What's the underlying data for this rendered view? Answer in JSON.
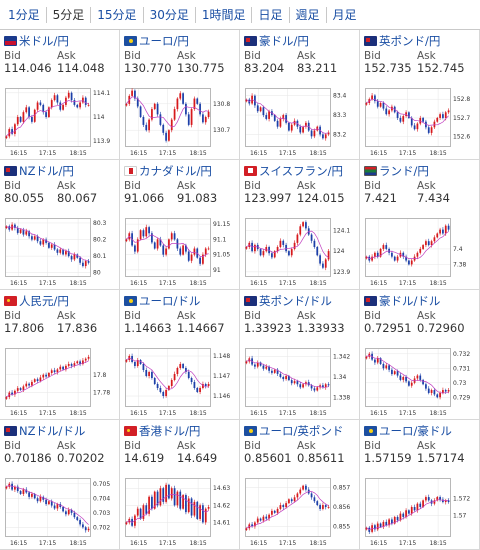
{
  "tabs": [
    {
      "label": "1分足",
      "active": false
    },
    {
      "label": "5分足",
      "active": true
    },
    {
      "label": "15分足",
      "active": false
    },
    {
      "label": "30分足",
      "active": false
    },
    {
      "label": "1時間足",
      "active": false
    },
    {
      "label": "日足",
      "active": false
    },
    {
      "label": "週足",
      "active": false
    },
    {
      "label": "月足",
      "active": false
    }
  ],
  "labels": {
    "bid": "Bid",
    "ask": "Ask"
  },
  "colors": {
    "up": "#d7191c",
    "down": "#1c3fa8",
    "ma": "#c040c0",
    "link": "#1a4ea3"
  },
  "pairs": [
    {
      "name": "米ドル/円",
      "flag": "us",
      "bid": "114.046",
      "ask": "114.048",
      "chart_data": {
        "type": "candlestick",
        "x_ticks": [
          "16:15",
          "17:15",
          "18:15"
        ],
        "y_ticks": [
          "114.1",
          "114",
          "113.9"
        ],
        "ylim": [
          113.88,
          114.12
        ],
        "close": [
          113.92,
          113.95,
          113.93,
          113.97,
          114.0,
          113.98,
          114.02,
          114.04,
          114.0,
          113.98,
          114.03,
          114.06,
          114.05,
          114.02,
          114.0,
          114.04,
          114.07,
          114.09,
          114.06,
          114.03,
          114.05,
          114.08,
          114.1,
          114.07,
          114.05,
          114.04,
          114.06,
          114.08,
          114.05,
          114.05
        ]
      }
    },
    {
      "name": "ユーロ/円",
      "flag": "eu",
      "bid": "130.770",
      "ask": "130.775",
      "chart_data": {
        "type": "candlestick",
        "x_ticks": [
          "16:15",
          "17:15",
          "18:15"
        ],
        "y_ticks": [
          "130.8",
          "130.7"
        ],
        "ylim": [
          130.64,
          130.86
        ],
        "close": [
          130.8,
          130.83,
          130.85,
          130.82,
          130.79,
          130.75,
          130.72,
          130.7,
          130.74,
          130.78,
          130.8,
          130.76,
          130.72,
          130.69,
          130.66,
          130.7,
          130.74,
          130.78,
          130.82,
          130.84,
          130.8,
          130.76,
          130.72,
          130.78,
          130.82,
          130.8,
          130.76,
          130.73,
          130.75,
          130.77
        ]
      }
    },
    {
      "name": "豪ドル/円",
      "flag": "au",
      "bid": "83.204",
      "ask": "83.211",
      "chart_data": {
        "type": "candlestick",
        "x_ticks": [
          "16:15",
          "17:15",
          "18:15"
        ],
        "y_ticks": [
          "83.4",
          "83.3",
          "83.2"
        ],
        "ylim": [
          83.14,
          83.44
        ],
        "close": [
          83.38,
          83.36,
          83.4,
          83.35,
          83.32,
          83.34,
          83.3,
          83.28,
          83.32,
          83.3,
          83.27,
          83.24,
          83.28,
          83.3,
          83.26,
          83.22,
          83.25,
          83.27,
          83.24,
          83.21,
          83.24,
          83.26,
          83.22,
          83.19,
          83.22,
          83.24,
          83.2,
          83.18,
          83.2,
          83.21
        ]
      }
    },
    {
      "name": "英ポンド/円",
      "flag": "gb",
      "bid": "152.735",
      "ask": "152.745",
      "chart_data": {
        "type": "candlestick",
        "x_ticks": [
          "16:15",
          "17:15",
          "18:15"
        ],
        "y_ticks": [
          "152.8",
          "152.7",
          "152.6"
        ],
        "ylim": [
          152.55,
          152.86
        ],
        "close": [
          152.78,
          152.8,
          152.82,
          152.79,
          152.76,
          152.78,
          152.75,
          152.72,
          152.74,
          152.76,
          152.73,
          152.7,
          152.68,
          152.71,
          152.73,
          152.7,
          152.66,
          152.64,
          152.67,
          152.7,
          152.68,
          152.65,
          152.62,
          152.65,
          152.68,
          152.7,
          152.72,
          152.7,
          152.73,
          152.74
        ]
      }
    },
    {
      "name": "NZドル/円",
      "flag": "nz",
      "bid": "80.055",
      "ask": "80.067",
      "chart_data": {
        "type": "candlestick",
        "x_ticks": [
          "16:15",
          "17:15",
          "18:15"
        ],
        "y_ticks": [
          "80.3",
          "80.2",
          "80.1",
          "80"
        ],
        "ylim": [
          79.98,
          80.33
        ],
        "close": [
          80.28,
          80.26,
          80.29,
          80.27,
          80.24,
          80.26,
          80.23,
          80.25,
          80.22,
          80.2,
          80.22,
          80.19,
          80.17,
          80.2,
          80.18,
          80.15,
          80.17,
          80.14,
          80.12,
          80.14,
          80.11,
          80.13,
          80.1,
          80.08,
          80.11,
          80.09,
          80.06,
          80.04,
          80.07,
          80.06
        ]
      }
    },
    {
      "name": "カナダドル/円",
      "flag": "ca",
      "bid": "91.066",
      "ask": "91.083",
      "chart_data": {
        "type": "candlestick",
        "x_ticks": [
          "16:15",
          "17:15",
          "18:15"
        ],
        "y_ticks": [
          "91.15",
          "91.1",
          "91.05",
          "91"
        ],
        "ylim": [
          90.98,
          91.17
        ],
        "close": [
          91.1,
          91.12,
          91.08,
          91.06,
          91.1,
          91.13,
          91.11,
          91.14,
          91.12,
          91.09,
          91.07,
          91.1,
          91.08,
          91.05,
          91.07,
          91.1,
          91.12,
          91.1,
          91.07,
          91.05,
          91.08,
          91.06,
          91.03,
          91.05,
          91.07,
          91.04,
          91.02,
          91.05,
          91.07,
          91.07
        ]
      }
    },
    {
      "name": "スイスフラン/円",
      "flag": "ch",
      "bid": "123.997",
      "ask": "124.015",
      "chart_data": {
        "type": "candlestick",
        "x_ticks": [
          "16:15",
          "17:15",
          "18:15"
        ],
        "y_ticks": [
          "124.1",
          "124",
          "123.9"
        ],
        "ylim": [
          123.88,
          124.16
        ],
        "close": [
          124.02,
          124.04,
          124.0,
          124.03,
          124.01,
          123.98,
          124.0,
          124.02,
          123.99,
          123.97,
          124.0,
          124.02,
          124.05,
          124.03,
          124.0,
          123.98,
          124.01,
          124.04,
          124.08,
          124.12,
          124.14,
          124.11,
          124.08,
          124.05,
          124.02,
          123.98,
          123.94,
          123.92,
          123.96,
          124.0
        ]
      }
    },
    {
      "name": "ランド/円",
      "flag": "za",
      "bid": "7.421",
      "ask": "7.434",
      "chart_data": {
        "type": "candlestick",
        "x_ticks": [
          "16:15",
          "17:15",
          "18:15"
        ],
        "y_ticks": [
          "7.4",
          "7.38"
        ],
        "ylim": [
          7.365,
          7.44
        ],
        "close": [
          7.39,
          7.385,
          7.39,
          7.395,
          7.39,
          7.4,
          7.405,
          7.4,
          7.395,
          7.39,
          7.385,
          7.39,
          7.395,
          7.39,
          7.385,
          7.38,
          7.385,
          7.39,
          7.395,
          7.4,
          7.405,
          7.41,
          7.405,
          7.41,
          7.415,
          7.42,
          7.425,
          7.42,
          7.43,
          7.425
        ]
      }
    },
    {
      "name": "人民元/円",
      "flag": "cn",
      "bid": "17.806",
      "ask": "17.836",
      "chart_data": {
        "type": "candlestick",
        "x_ticks": [
          "16:15",
          "17:15",
          "18:15"
        ],
        "y_ticks": [
          "17.8",
          "17.78"
        ],
        "ylim": [
          17.765,
          17.83
        ],
        "close": [
          17.775,
          17.78,
          17.778,
          17.782,
          17.785,
          17.783,
          17.787,
          17.79,
          17.788,
          17.792,
          17.795,
          17.793,
          17.797,
          17.8,
          17.798,
          17.802,
          17.805,
          17.803,
          17.806,
          17.809,
          17.806,
          17.81,
          17.812,
          17.81,
          17.813,
          17.815,
          17.812,
          17.816,
          17.818,
          17.82
        ]
      }
    },
    {
      "name": "ユーロ/ドル",
      "flag": "eu",
      "bid": "1.14663",
      "ask": "1.14667",
      "chart_data": {
        "type": "candlestick",
        "x_ticks": [
          "16:15",
          "17:15",
          "18:15"
        ],
        "y_ticks": [
          "1.148",
          "1.147",
          "1.146"
        ],
        "ylim": [
          1.1455,
          1.1484
        ],
        "close": [
          1.1478,
          1.148,
          1.1477,
          1.1475,
          1.1478,
          1.1476,
          1.1473,
          1.147,
          1.1472,
          1.1469,
          1.1466,
          1.1464,
          1.1462,
          1.146,
          1.1463,
          1.1465,
          1.1468,
          1.1471,
          1.1474,
          1.1476,
          1.1474,
          1.1472,
          1.1469,
          1.1467,
          1.1464,
          1.1462,
          1.1464,
          1.1466,
          1.1465,
          1.1466
        ]
      }
    },
    {
      "name": "英ポンド/ドル",
      "flag": "gb",
      "bid": "1.33923",
      "ask": "1.33933",
      "chart_data": {
        "type": "candlestick",
        "x_ticks": [
          "16:15",
          "17:15",
          "18:15"
        ],
        "y_ticks": [
          "1.342",
          "1.34",
          "1.338"
        ],
        "ylim": [
          1.3372,
          1.3428
        ],
        "close": [
          1.3415,
          1.3418,
          1.3412,
          1.341,
          1.3414,
          1.3411,
          1.3408,
          1.341,
          1.3406,
          1.3404,
          1.3407,
          1.3403,
          1.34,
          1.3398,
          1.3401,
          1.3397,
          1.3394,
          1.3396,
          1.3393,
          1.339,
          1.3393,
          1.3395,
          1.3392,
          1.3389,
          1.3387,
          1.339,
          1.3392,
          1.339,
          1.3393,
          1.3392
        ]
      }
    },
    {
      "name": "豪ドル/ドル",
      "flag": "au",
      "bid": "0.72951",
      "ask": "0.72960",
      "chart_data": {
        "type": "candlestick",
        "x_ticks": [
          "16:15",
          "17:15",
          "18:15"
        ],
        "y_ticks": [
          "0.732",
          "0.731",
          "0.73",
          "0.729"
        ],
        "ylim": [
          0.7284,
          0.7324
        ],
        "close": [
          0.7318,
          0.732,
          0.7316,
          0.7314,
          0.7317,
          0.7313,
          0.731,
          0.7312,
          0.7309,
          0.7306,
          0.7308,
          0.7305,
          0.7302,
          0.7304,
          0.7301,
          0.7298,
          0.73,
          0.7303,
          0.7305,
          0.7302,
          0.7299,
          0.7296,
          0.7293,
          0.7295,
          0.7292,
          0.729,
          0.7293,
          0.7295,
          0.7294,
          0.7295
        ]
      }
    },
    {
      "name": "NZドル/ドル",
      "flag": "nz",
      "bid": "0.70186",
      "ask": "0.70202",
      "chart_data": {
        "type": "candlestick",
        "x_ticks": [
          "16:15",
          "17:15",
          "18:15"
        ],
        "y_ticks": [
          "0.705",
          "0.704",
          "0.703",
          "0.702"
        ],
        "ylim": [
          0.7014,
          0.7054
        ],
        "close": [
          0.7048,
          0.705,
          0.7046,
          0.7048,
          0.7045,
          0.7043,
          0.7046,
          0.7044,
          0.7041,
          0.7043,
          0.704,
          0.7038,
          0.7041,
          0.7039,
          0.7036,
          0.7038,
          0.7035,
          0.7033,
          0.7036,
          0.7034,
          0.7031,
          0.7029,
          0.7032,
          0.703,
          0.7027,
          0.7025,
          0.7022,
          0.702,
          0.7018,
          0.7019
        ]
      }
    },
    {
      "name": "香港ドル/円",
      "flag": "hk",
      "bid": "14.619",
      "ask": "14.649",
      "chart_data": {
        "type": "candlestick",
        "x_ticks": [
          "16:15",
          "17:15",
          "18:15"
        ],
        "y_ticks": [
          "14.63",
          "14.62",
          "14.61"
        ],
        "ylim": [
          14.602,
          14.636
        ],
        "close": [
          14.61,
          14.612,
          14.608,
          14.614,
          14.618,
          14.612,
          14.62,
          14.615,
          14.625,
          14.618,
          14.628,
          14.62,
          14.63,
          14.622,
          14.632,
          14.624,
          14.63,
          14.62,
          14.628,
          14.618,
          14.626,
          14.616,
          14.624,
          14.614,
          14.622,
          14.612,
          14.62,
          14.61,
          14.618,
          14.619
        ]
      }
    },
    {
      "name": "ユーロ/英ポンド",
      "flag": "eu",
      "bid": "0.85601",
      "ask": "0.85611",
      "chart_data": {
        "type": "candlestick",
        "x_ticks": [
          "16:15",
          "17:15",
          "18:15"
        ],
        "y_ticks": [
          "0.857",
          "0.856",
          "0.855"
        ],
        "ylim": [
          0.8545,
          0.8575
        ],
        "close": [
          0.8549,
          0.8551,
          0.855,
          0.8552,
          0.8554,
          0.8553,
          0.8555,
          0.8554,
          0.8556,
          0.8558,
          0.8557,
          0.8559,
          0.8561,
          0.856,
          0.8562,
          0.8564,
          0.8563,
          0.8565,
          0.8567,
          0.8569,
          0.8571,
          0.8569,
          0.8567,
          0.8565,
          0.8563,
          0.8561,
          0.8559,
          0.8561,
          0.856,
          0.856
        ]
      }
    },
    {
      "name": "ユーロ/豪ドル",
      "flag": "eu",
      "bid": "1.57159",
      "ask": "1.57174",
      "chart_data": {
        "type": "candlestick",
        "x_ticks": [
          "16:15",
          "17:15",
          "18:15"
        ],
        "y_ticks": [
          "1.572",
          "1.57"
        ],
        "ylim": [
          1.5675,
          1.5745
        ],
        "close": [
          1.5685,
          1.568,
          1.5688,
          1.5683,
          1.569,
          1.5686,
          1.5692,
          1.5688,
          1.5695,
          1.569,
          1.5698,
          1.5694,
          1.5702,
          1.5698,
          1.5706,
          1.5702,
          1.571,
          1.5706,
          1.5714,
          1.571,
          1.5718,
          1.5722,
          1.5718,
          1.5714,
          1.5718,
          1.5722,
          1.5719,
          1.5716,
          1.5718,
          1.5716
        ]
      }
    }
  ]
}
